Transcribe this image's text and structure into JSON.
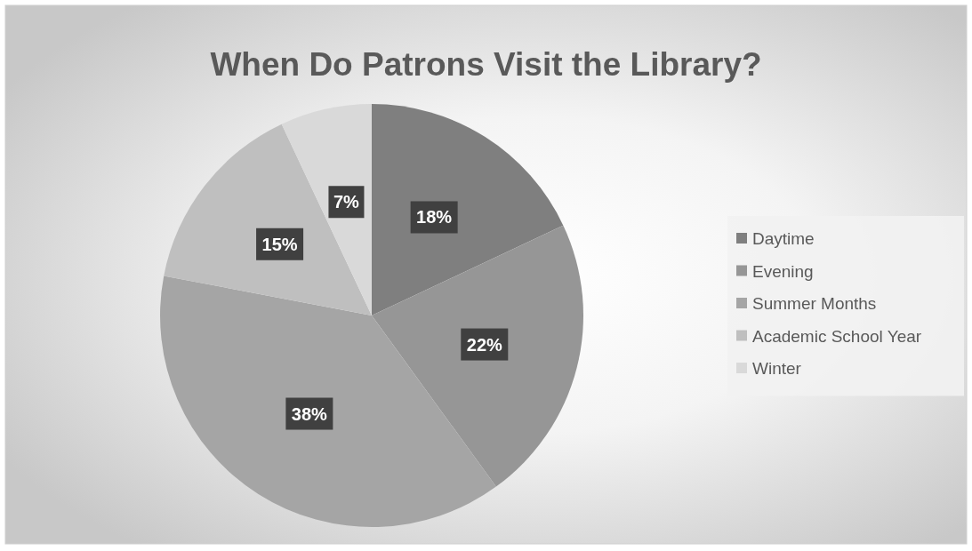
{
  "chart_data": {
    "type": "pie",
    "title": "When Do Patrons Visit the Library?",
    "categories": [
      "Daytime",
      "Evening",
      "Summer Months",
      "Academic School Year",
      "Winter"
    ],
    "values": [
      18,
      22,
      38,
      15,
      7
    ],
    "colors": [
      "#7f7f7f",
      "#969696",
      "#a5a5a5",
      "#bfbfbf",
      "#d9d9d9"
    ],
    "value_labels": [
      "18%",
      "22%",
      "38%",
      "15%",
      "7%"
    ],
    "legend": "right"
  }
}
